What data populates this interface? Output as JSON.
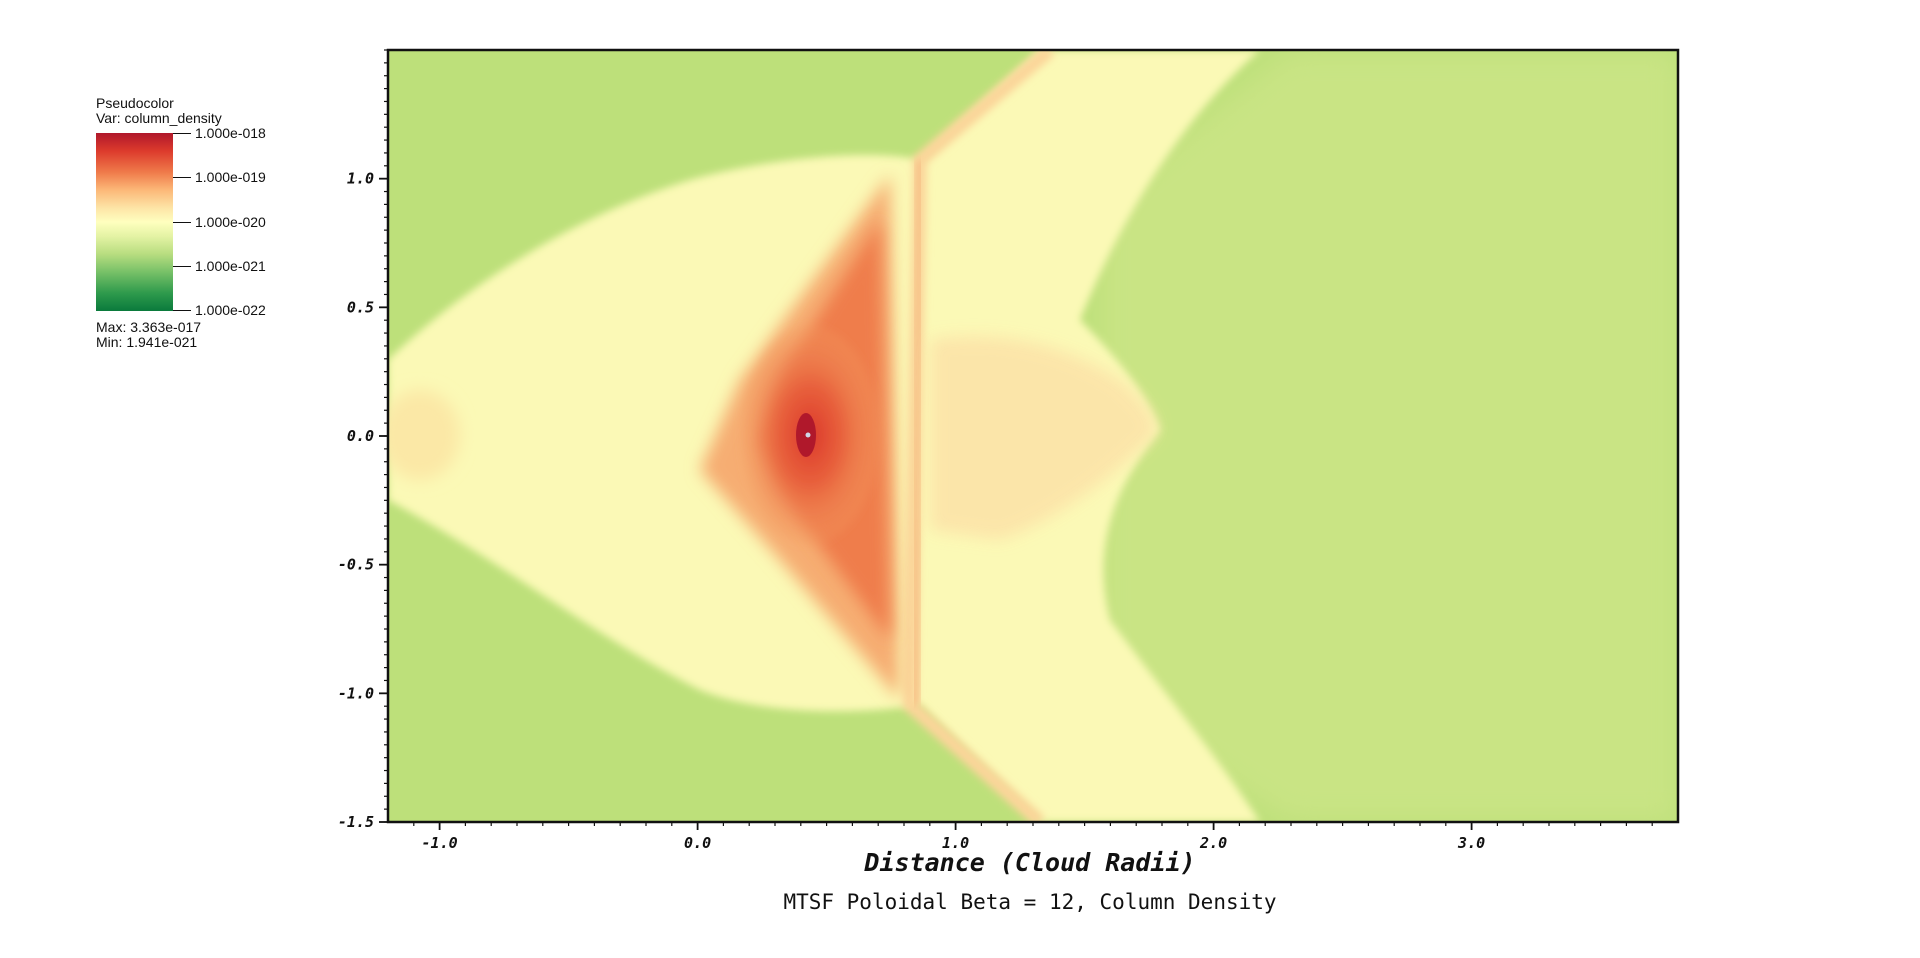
{
  "chart_data": {
    "type": "heatmap",
    "title": "MTSF Poloidal Beta = 12, Column Density",
    "xlabel": "Distance (Cloud Radii)",
    "ylabel": "",
    "xlim": [
      -1.2,
      3.8
    ],
    "ylim": [
      -1.5,
      1.5
    ],
    "x_ticks": [
      "-1.0",
      "0.0",
      "1.0",
      "2.0",
      "3.0"
    ],
    "y_ticks": [
      "1.0",
      "0.5",
      "0.0",
      "-0.5",
      "-1.0",
      "-1.5"
    ],
    "colormap": [
      "#0a7a3c",
      "#78c168",
      "#b8dd80",
      "#ffffbf",
      "#fcb878",
      "#ef7a4a",
      "#b0182b"
    ],
    "background_color": "#bde07a",
    "legend": {
      "kind": "Pseudocolor",
      "var_label": "Var: column_density",
      "scale": "log",
      "levels": [
        "1.000e-018",
        "1.000e-019",
        "1.000e-020",
        "1.000e-021",
        "1.000e-022"
      ],
      "max_label": "Max:  3.363e-017",
      "min_label": "Min:  1.941e-021"
    }
  }
}
